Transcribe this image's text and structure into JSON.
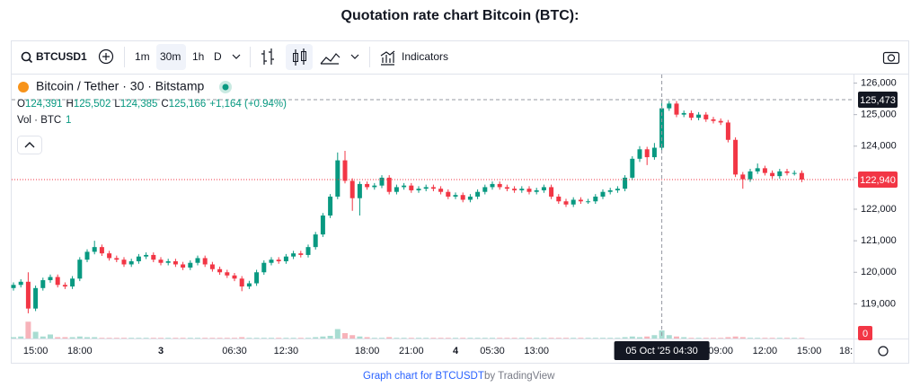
{
  "page_title": "Quotation rate chart Bitcoin (BTC):",
  "toolbar": {
    "symbol": "BTCUSD1",
    "intervals": [
      "1m",
      "30m",
      "1h",
      "D"
    ],
    "indicators": "Indicators"
  },
  "legend": {
    "name": "Bitcoin / Tether · 30 · Bitstamp",
    "ohlc": [
      {
        "key": "O",
        "value": "124,391"
      },
      {
        "key": "H",
        "value": "125,502"
      },
      {
        "key": "L",
        "value": "124,385"
      },
      {
        "key": "C",
        "value": "125,166"
      }
    ],
    "change": "+1,164 (+0.94%)",
    "volume_label": "Vol · BTC",
    "volume_value": "1"
  },
  "footer": {
    "link": "Graph chart for BTCUSDT",
    "by": "by TradingView"
  },
  "chart_data": {
    "type": "candlestick",
    "up_color": "#089981",
    "down_color": "#f23645",
    "ylim": [
      117900,
      126300
    ],
    "yticks": [
      {
        "value": 119000,
        "label": "119,000"
      },
      {
        "value": 120000,
        "label": "120,000"
      },
      {
        "value": 121000,
        "label": "121,000"
      },
      {
        "value": 122000,
        "label": "122,000"
      },
      {
        "value": 123000,
        "label": "123,000"
      },
      {
        "value": 124000,
        "label": "124,000"
      },
      {
        "value": 125000,
        "label": "125,000"
      },
      {
        "value": 126000,
        "label": "126,000"
      }
    ],
    "current_price": {
      "value": 122940,
      "label": "122,940"
    },
    "crosshair_price": {
      "value": 125473,
      "label": "125,473"
    },
    "crosshair_time": "05 Oct '25  04:30",
    "crosshair_index": 88,
    "volume_ylim": [
      0,
      40
    ],
    "volume_last_label": "0",
    "categories": [
      null,
      null,
      null,
      "15:00",
      null,
      null,
      null,
      null,
      null,
      "18:00",
      null,
      null,
      null,
      null,
      null,
      null,
      null,
      null,
      null,
      null,
      "3",
      null,
      null,
      null,
      null,
      null,
      null,
      null,
      null,
      null,
      "06:30",
      null,
      null,
      null,
      null,
      null,
      null,
      "12:30",
      null,
      null,
      null,
      null,
      null,
      null,
      null,
      null,
      null,
      null,
      "18:00",
      null,
      null,
      null,
      null,
      null,
      "21:00",
      null,
      null,
      null,
      null,
      null,
      "4",
      null,
      null,
      null,
      null,
      "05:30",
      null,
      null,
      null,
      null,
      null,
      "13:00",
      null,
      null,
      null,
      null,
      null,
      null,
      null,
      null,
      null,
      null,
      null,
      null,
      null,
      null,
      null,
      null,
      null,
      null,
      null,
      null,
      null,
      null,
      null,
      null,
      "09:00",
      null,
      null,
      null,
      null,
      null,
      "12:00",
      null,
      null,
      null,
      null,
      null,
      "15:00",
      null,
      null,
      null,
      null,
      "18:"
    ],
    "open": [
      119500,
      119600,
      119700,
      118850,
      119500,
      119750,
      119850,
      119600,
      119550,
      119800,
      120400,
      120650,
      120800,
      120600,
      120450,
      120400,
      120250,
      120350,
      120500,
      120550,
      120400,
      120300,
      120350,
      120250,
      120150,
      120300,
      120450,
      120250,
      120100,
      120000,
      119900,
      119800,
      119550,
      119650,
      120000,
      120300,
      120400,
      120350,
      120500,
      120600,
      120550,
      120800,
      121200,
      121800,
      122400,
      123550,
      122900,
      122350,
      122800,
      122700,
      122750,
      123000,
      122550,
      122700,
      122750,
      122600,
      122650,
      122700,
      122650,
      122550,
      122400,
      122450,
      122300,
      122400,
      122550,
      122700,
      122800,
      122700,
      122650,
      122600,
      122650,
      122550,
      122600,
      122700,
      122400,
      122250,
      122150,
      122300,
      122250,
      122250,
      122400,
      122550,
      122600,
      122650,
      123000,
      123600,
      123900,
      123650,
      123950,
      125200,
      125350,
      125000,
      125050,
      124900,
      125000,
      124850,
      124800,
      124750,
      124200,
      123100,
      122950,
      123200,
      123300,
      123150,
      123050,
      123200,
      123150,
      123150,
      null,
      null,
      null,
      null,
      null,
      null
    ],
    "high": [
      119680,
      119780,
      120000,
      119580,
      119830,
      119930,
      119930,
      119680,
      119880,
      120480,
      120730,
      121000,
      120880,
      120680,
      120530,
      120480,
      120430,
      120580,
      120630,
      120630,
      120480,
      120430,
      120430,
      120330,
      120380,
      120530,
      120530,
      120330,
      120180,
      120080,
      119980,
      119880,
      119730,
      120080,
      120380,
      120480,
      120480,
      120580,
      120680,
      120680,
      120880,
      121280,
      121880,
      122480,
      123800,
      123850,
      122980,
      122880,
      122880,
      122830,
      123080,
      123080,
      122780,
      122830,
      122830,
      122730,
      122780,
      122780,
      122730,
      122630,
      122530,
      122530,
      122480,
      122630,
      122780,
      122880,
      122880,
      122780,
      122730,
      122730,
      122730,
      122680,
      122780,
      122780,
      122480,
      122330,
      122380,
      122380,
      122330,
      122480,
      122630,
      122680,
      122730,
      123080,
      123680,
      124000,
      123980,
      124100,
      125450,
      125430,
      125430,
      125130,
      125130,
      125080,
      125080,
      124930,
      124880,
      124830,
      124280,
      123180,
      123280,
      123450,
      123380,
      123230,
      123280,
      123280,
      123230,
      123230,
      null,
      null,
      null,
      null,
      null,
      null
    ],
    "low": [
      119420,
      119520,
      118700,
      118770,
      119420,
      119670,
      119520,
      119470,
      119470,
      119720,
      120320,
      120570,
      120520,
      120370,
      120320,
      120170,
      120170,
      120270,
      120420,
      120320,
      120220,
      120220,
      120170,
      120070,
      120070,
      120220,
      120170,
      120020,
      119920,
      119820,
      119720,
      119400,
      119470,
      119570,
      119920,
      120220,
      120270,
      120270,
      120420,
      120470,
      120470,
      120720,
      121120,
      121720,
      122320,
      122820,
      121950,
      121800,
      122620,
      122620,
      122670,
      122470,
      122470,
      122620,
      122520,
      122520,
      122570,
      122570,
      122470,
      122320,
      122320,
      122220,
      122220,
      122320,
      122470,
      122620,
      122620,
      122570,
      122520,
      122520,
      122470,
      122470,
      122520,
      122320,
      122170,
      122070,
      122070,
      122170,
      122170,
      122170,
      122320,
      122470,
      122520,
      122570,
      122920,
      123500,
      123400,
      123570,
      123870,
      125120,
      124920,
      124920,
      124820,
      124820,
      124770,
      124720,
      124670,
      124120,
      123020,
      122650,
      122870,
      123120,
      123070,
      122970,
      122970,
      123070,
      123070,
      122860,
      null,
      null,
      null,
      null,
      null,
      null
    ],
    "close": [
      119600,
      119700,
      118850,
      119500,
      119750,
      119850,
      119600,
      119550,
      119800,
      120400,
      120650,
      120800,
      120600,
      120450,
      120400,
      120250,
      120350,
      120500,
      120550,
      120400,
      120300,
      120350,
      120250,
      120150,
      120300,
      120450,
      120250,
      120100,
      120000,
      119900,
      119800,
      119550,
      119650,
      120000,
      120300,
      120400,
      120350,
      120500,
      120600,
      120550,
      120800,
      121200,
      121800,
      122400,
      123550,
      122900,
      122350,
      122800,
      122700,
      122750,
      123000,
      122550,
      122700,
      122750,
      122600,
      122650,
      122700,
      122650,
      122550,
      122400,
      122450,
      122300,
      122400,
      122550,
      122700,
      122800,
      122700,
      122650,
      122600,
      122650,
      122550,
      122600,
      122700,
      122400,
      122250,
      122150,
      122300,
      122250,
      122250,
      122400,
      122550,
      122600,
      122650,
      123000,
      123600,
      123900,
      123650,
      123950,
      125200,
      125350,
      125000,
      125050,
      124900,
      125000,
      124850,
      124800,
      124750,
      124200,
      123100,
      122950,
      123200,
      123300,
      123150,
      123050,
      123200,
      123150,
      123150,
      122940,
      null,
      null,
      null,
      null,
      null,
      null
    ],
    "volume": [
      2,
      3,
      25,
      10,
      3,
      6,
      2,
      2,
      2,
      3,
      2,
      2,
      1,
      1,
      1,
      1,
      1,
      1,
      1,
      1,
      1,
      1,
      1,
      1,
      1,
      1,
      1,
      1,
      1,
      1,
      1,
      2,
      1,
      1,
      1,
      1,
      1,
      1,
      1,
      1,
      1,
      2,
      3,
      4,
      14,
      8,
      5,
      3,
      2,
      1,
      1,
      2,
      1,
      1,
      1,
      1,
      1,
      1,
      1,
      1,
      1,
      1,
      1,
      1,
      1,
      1,
      1,
      1,
      1,
      1,
      1,
      1,
      1,
      1,
      1,
      1,
      1,
      1,
      1,
      1,
      1,
      1,
      1,
      2,
      3,
      2,
      3,
      5,
      12,
      5,
      3,
      2,
      1,
      1,
      1,
      1,
      1,
      2,
      3,
      2,
      1,
      1,
      1,
      1,
      1,
      1,
      1,
      1,
      null,
      null,
      null,
      null,
      null,
      null
    ]
  }
}
